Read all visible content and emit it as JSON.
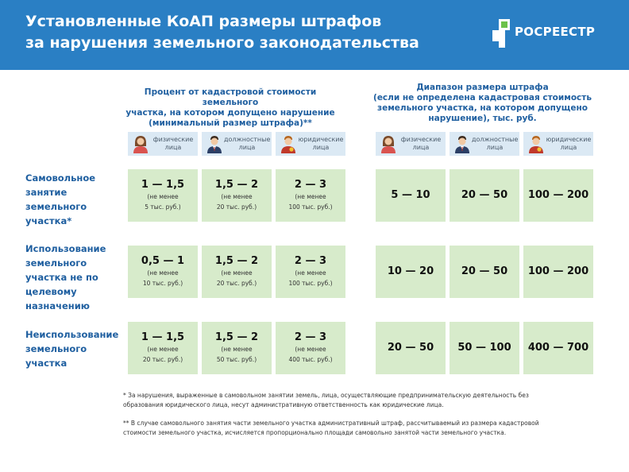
{
  "header": {
    "title_line1": "Установленные КоАП размеры штрафов",
    "title_line2": "за нарушения земельного законодательства",
    "logo_text": "РОСРЕЕСТР"
  },
  "columns": {
    "left_heading": [
      "Процент от кадастровой стоимости земельного",
      "участка, на котором допущено нарушение",
      "(минимальный размер штрафа)**"
    ],
    "right_heading": [
      "Диапазон размера штрафа",
      "(если не определена кадастровая стоимость",
      "земельного участка, на котором допущено",
      "нарушение), тыс. руб."
    ]
  },
  "persons": [
    {
      "line1": "физические",
      "line2": "лица"
    },
    {
      "line1": "должностные",
      "line2": "лица"
    },
    {
      "line1": "юридические",
      "line2": "лица"
    }
  ],
  "rows": [
    {
      "label": [
        "Самовольное",
        "занятие",
        "земельного",
        "участка*"
      ],
      "percent": [
        {
          "value": "1 — 1,5",
          "note1": "(не менее",
          "note2": "5 тыс. руб.)"
        },
        {
          "value": "1,5 — 2",
          "note1": "(не менее",
          "note2": "20 тыс. руб.)"
        },
        {
          "value": "2 — 3",
          "note1": "(не менее",
          "note2": "100 тыс. руб.)"
        }
      ],
      "range": [
        "5 — 10",
        "20 — 50",
        "100 — 200"
      ]
    },
    {
      "label": [
        "Использование",
        "земельного",
        "участка не по",
        "целевому",
        "назначению"
      ],
      "percent": [
        {
          "value": "0,5 — 1",
          "note1": "(не менее",
          "note2": "10 тыс. руб.)"
        },
        {
          "value": "1,5 — 2",
          "note1": "(не менее",
          "note2": "20 тыс. руб.)"
        },
        {
          "value": "2 — 3",
          "note1": "(не менее",
          "note2": "100 тыс. руб.)"
        }
      ],
      "range": [
        "10 — 20",
        "20 — 50",
        "100 — 200"
      ]
    },
    {
      "label": [
        "Неиспользование",
        "земельного",
        "участка"
      ],
      "percent": [
        {
          "value": "1 — 1,5",
          "note1": "(не менее",
          "note2": "20 тыс. руб.)"
        },
        {
          "value": "1,5 — 2",
          "note1": "(не менее",
          "note2": "50 тыс. руб.)"
        },
        {
          "value": "2 — 3",
          "note1": "(не менее",
          "note2": "400 тыс. руб.)"
        }
      ],
      "range": [
        "20 — 50",
        "50 — 100",
        "400 — 700"
      ]
    }
  ],
  "notes": {
    "note1_line1": "* За нарушения, выраженные в самовольном занятии земель, лица, осуществляющие предпринимательскую деятельность без",
    "note1_line2": "образования юридического лица, несут административную ответственность как юридические лица.",
    "note2_line1": "** В случае самовольного занятия части земельного участка административный штраф, рассчитываемый из размера кадастровой",
    "note2_line2": "стоимости земельного участка, исчисляется пропорционально площади самовольно занятой части земельного участка."
  },
  "colors": {
    "header_bg": "#2a7fc4",
    "heading_text": "#1f5fa0",
    "cell_bg": "#d7ebcb",
    "person_bg": "#dbe9f4"
  }
}
